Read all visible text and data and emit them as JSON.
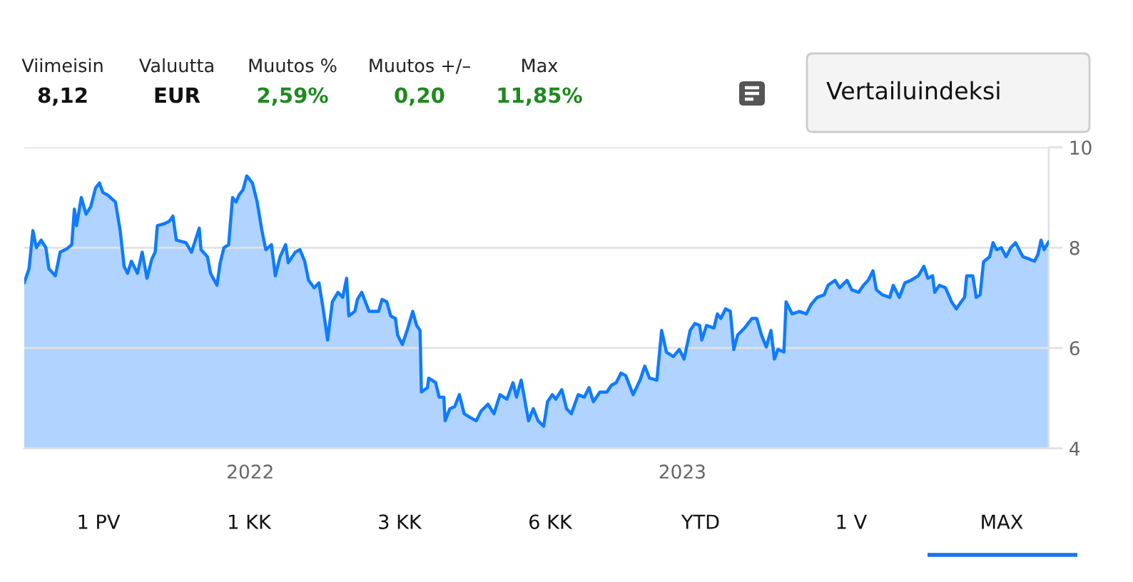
{
  "chart_data": {
    "type": "area",
    "annotations": [
      "Viimeisin",
      "8,12",
      "Valuutta",
      "EUR",
      "Muutos %",
      "2,59%",
      "Muutos +/–",
      "0,20",
      "Max",
      "11,85%",
      "Vertailuindeksi",
      "1 PV",
      "1 KK",
      "3 KK",
      "6 KK",
      "YTD",
      "1 V",
      "MAX"
    ],
    "x": [
      2021.477,
      2021.488,
      2021.497,
      2021.505,
      2021.516,
      2021.527,
      2021.534,
      2021.549,
      2021.56,
      2021.576,
      2021.587,
      2021.593,
      2021.598,
      2021.609,
      2021.62,
      2021.631,
      2021.642,
      2021.651,
      2021.659,
      2021.67,
      2021.688,
      2021.699,
      2021.708,
      2021.716,
      2021.725,
      2021.739,
      2021.75,
      2021.761,
      2021.772,
      2021.78,
      2021.785,
      2021.802,
      2021.813,
      2021.821,
      2021.829,
      2021.851,
      2021.864,
      2021.882,
      2021.886,
      2021.901,
      2021.908,
      2021.923,
      2021.93,
      2021.939,
      2021.95,
      2021.959,
      2021.967,
      2021.974,
      2021.983,
      2021.992,
      2022.005,
      2022.016,
      2022.027,
      2022.036,
      2022.049,
      2022.058,
      2022.069,
      2022.082,
      2022.088,
      2022.104,
      2022.115,
      2022.126,
      2022.135,
      2022.148,
      2022.159,
      2022.168,
      2022.179,
      2022.19,
      2022.203,
      2022.214,
      2022.223,
      2022.228,
      2022.242,
      2022.248,
      2022.258,
      2022.275,
      2022.297,
      2022.305,
      2022.316,
      2022.325,
      2022.336,
      2022.341,
      2022.352,
      2022.363,
      2022.376,
      2022.385,
      2022.393,
      2022.396,
      2022.41,
      2022.413,
      2022.429,
      2022.437,
      2022.448,
      2022.451,
      2022.462,
      2022.473,
      2022.484,
      2022.495,
      2022.512,
      2022.523,
      2022.534,
      2022.55,
      2022.564,
      2022.578,
      2022.594,
      2022.608,
      2022.616,
      2022.627,
      2022.638,
      2022.644,
      2022.655,
      2022.666,
      2022.679,
      2022.688,
      2022.699,
      2022.707,
      2022.721,
      2022.732,
      2022.743,
      2022.759,
      2022.773,
      2022.784,
      2022.794,
      2022.809,
      2022.825,
      2022.836,
      2022.847,
      2022.858,
      2022.869,
      2022.886,
      2022.902,
      2022.913,
      2022.924,
      2022.941,
      2022.952,
      2022.963,
      2022.979,
      2022.993,
      2023.004,
      2023.018,
      2023.029,
      2023.04,
      2023.045,
      2023.056,
      2023.073,
      2023.081,
      2023.089,
      2023.1,
      2023.111,
      2023.119,
      2023.128,
      2023.144,
      2023.161,
      2023.172,
      2023.183,
      2023.194,
      2023.205,
      2023.213,
      2023.221,
      2023.235,
      2023.24,
      2023.254,
      2023.271,
      2023.287,
      2023.298,
      2023.312,
      2023.328,
      2023.337,
      2023.353,
      2023.364,
      2023.381,
      2023.392,
      2023.408,
      2023.419,
      2023.43,
      2023.441,
      2023.449,
      2023.463,
      2023.48,
      2023.488,
      2023.502,
      2023.515,
      2023.529,
      2023.546,
      2023.559,
      2023.568,
      2023.579,
      2023.584,
      2023.595,
      2023.609,
      2023.623,
      2023.634,
      2023.645,
      2023.653,
      2023.658,
      2023.672,
      2023.68,
      2023.689,
      2023.697,
      2023.711,
      2023.719,
      2023.727,
      2023.738,
      2023.749,
      2023.76,
      2023.771,
      2023.788,
      2023.804,
      2023.815,
      2023.823,
      2023.83,
      2023.837,
      2023.848
    ],
    "series": [
      {
        "color": "#0f7bff",
        "values": [
          7.3,
          7.58,
          8.34,
          8.0,
          8.15,
          8.0,
          7.58,
          7.44,
          7.91,
          7.98,
          8.06,
          8.77,
          8.44,
          9.0,
          8.67,
          8.82,
          9.19,
          9.29,
          9.1,
          9.05,
          8.91,
          8.34,
          7.63,
          7.49,
          7.73,
          7.49,
          7.91,
          7.39,
          7.77,
          7.91,
          8.44,
          8.48,
          8.53,
          8.63,
          8.15,
          8.1,
          7.91,
          8.39,
          7.96,
          7.82,
          7.49,
          7.25,
          7.68,
          8.0,
          8.06,
          9.0,
          8.91,
          9.05,
          9.15,
          9.43,
          9.29,
          8.91,
          8.34,
          7.96,
          8.06,
          7.44,
          7.82,
          8.06,
          7.7,
          7.91,
          7.96,
          7.73,
          7.35,
          7.2,
          7.3,
          6.82,
          6.16,
          6.92,
          7.11,
          7.01,
          7.39,
          6.64,
          6.73,
          6.97,
          7.11,
          6.73,
          6.73,
          6.97,
          6.92,
          6.64,
          6.59,
          6.26,
          6.07,
          6.35,
          6.73,
          6.45,
          6.35,
          5.12,
          5.21,
          5.4,
          5.31,
          5.02,
          5.02,
          4.55,
          4.79,
          4.83,
          5.07,
          4.69,
          4.6,
          4.55,
          4.74,
          4.88,
          4.69,
          5.07,
          4.98,
          5.31,
          5.02,
          5.36,
          4.83,
          4.55,
          4.79,
          4.55,
          4.44,
          4.93,
          5.07,
          4.98,
          5.17,
          4.79,
          4.69,
          5.07,
          5.02,
          5.21,
          4.93,
          5.12,
          5.12,
          5.26,
          5.31,
          5.5,
          5.45,
          5.07,
          5.36,
          5.64,
          5.4,
          5.36,
          6.35,
          5.92,
          5.83,
          5.97,
          5.78,
          6.35,
          6.49,
          6.45,
          6.16,
          6.45,
          6.4,
          6.68,
          6.59,
          6.78,
          6.73,
          5.97,
          6.26,
          6.4,
          6.59,
          6.59,
          6.26,
          6.02,
          6.35,
          5.78,
          5.97,
          5.92,
          6.92,
          6.68,
          6.73,
          6.68,
          6.87,
          7.01,
          7.06,
          7.25,
          7.35,
          7.2,
          7.35,
          7.16,
          7.11,
          7.25,
          7.35,
          7.54,
          7.16,
          7.06,
          7.01,
          7.25,
          7.01,
          7.3,
          7.35,
          7.44,
          7.63,
          7.39,
          7.44,
          7.11,
          7.25,
          7.2,
          6.92,
          6.78,
          6.92,
          7.01,
          7.44,
          7.44,
          7.01,
          7.06,
          7.72,
          7.82,
          8.1,
          7.96,
          8.0,
          7.82,
          8.0,
          8.1,
          7.82,
          7.77,
          7.73,
          7.87,
          8.15,
          7.96,
          8.12
        ]
      }
    ],
    "xlim": [
      2021.477,
      2023.848
    ],
    "xticks": [
      2022,
      2023
    ],
    "ylim": [
      4,
      10
    ],
    "yticks": [
      4,
      6,
      8,
      10
    ],
    "grid": "y"
  }
}
